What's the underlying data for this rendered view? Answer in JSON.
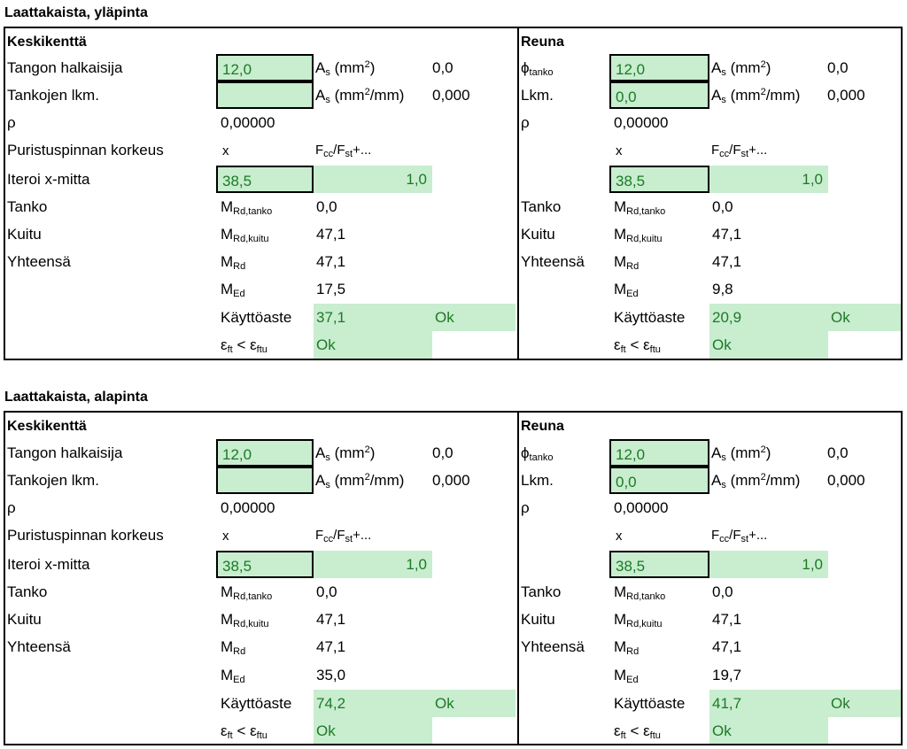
{
  "sections": [
    {
      "title": "Laattakaista, yläpinta",
      "left": {
        "header": "Keskikenttä",
        "label_diameter": "Tangon halkaisija",
        "diameter_value": "12,0",
        "label_count": "Tankojen lkm.",
        "count_value": "",
        "as_value": "0,0",
        "as_per_mm_value": "0,000",
        "rho_label": "ρ",
        "rho_value": "0,00000",
        "label_height": "Puristuspinnan korkeus",
        "x_label": "x",
        "ratio_label": "Fcc/Fst+...",
        "label_iterate": "Iteroi x-mitta",
        "x_value": "38,5",
        "ratio_value": "1,0",
        "label_tanko": "Tanko",
        "mrd_tanko_value": "0,0",
        "label_kuitu": "Kuitu",
        "mrd_kuitu_value": "47,1",
        "label_total": "Yhteensä",
        "mrd_value": "47,1",
        "med_value": "17,5",
        "utilization_label": "Käyttöaste",
        "utilization_value": "37,1",
        "utilization_status": "Ok",
        "strain_status": "Ok"
      },
      "right": {
        "header": "Reuna",
        "phi_label": "ϕ",
        "phi_sub": "tanko",
        "diameter_value": "12,0",
        "label_count": "Lkm.",
        "count_value": "0,0",
        "as_value": "0,0",
        "as_per_mm_value": "0,000",
        "rho_label": "ρ",
        "rho_value": "0,00000",
        "x_label": "x",
        "ratio_label": "Fcc/Fst+...",
        "x_value": "38,5",
        "ratio_value": "1,0",
        "label_tanko": "Tanko",
        "mrd_tanko_value": "0,0",
        "label_kuitu": "Kuitu",
        "mrd_kuitu_value": "47,1",
        "label_total": "Yhteensä",
        "mrd_value": "47,1",
        "med_value": "9,8",
        "utilization_label": "Käyttöaste",
        "utilization_value": "20,9",
        "utilization_status": "Ok",
        "strain_status": "Ok"
      }
    },
    {
      "title": "Laattakaista, alapinta",
      "left": {
        "header": "Keskikenttä",
        "label_diameter": "Tangon halkaisija",
        "diameter_value": "12,0",
        "label_count": "Tankojen lkm.",
        "count_value": "",
        "as_value": "0,0",
        "as_per_mm_value": "0,000",
        "rho_label": "ρ",
        "rho_value": "0,00000",
        "label_height": "Puristuspinnan korkeus",
        "x_label": "x",
        "ratio_label": "Fcc/Fst+...",
        "label_iterate": "Iteroi x-mitta",
        "x_value": "38,5",
        "ratio_value": "1,0",
        "label_tanko": "Tanko",
        "mrd_tanko_value": "0,0",
        "label_kuitu": "Kuitu",
        "mrd_kuitu_value": "47,1",
        "label_total": "Yhteensä",
        "mrd_value": "47,1",
        "med_value": "35,0",
        "utilization_label": "Käyttöaste",
        "utilization_value": "74,2",
        "utilization_status": "Ok",
        "strain_status": "Ok"
      },
      "right": {
        "header": "Reuna",
        "phi_label": "ϕ",
        "phi_sub": "tanko",
        "diameter_value": "12,0",
        "label_count": "Lkm.",
        "count_value": "0,0",
        "as_value": "0,0",
        "as_per_mm_value": "0,000",
        "rho_label": "ρ",
        "rho_value": "0,00000",
        "x_label": "x",
        "ratio_label": "Fcc/Fst+...",
        "x_value": "38,5",
        "ratio_value": "1,0",
        "label_tanko": "Tanko",
        "mrd_tanko_value": "0,0",
        "label_kuitu": "Kuitu",
        "mrd_kuitu_value": "47,1",
        "label_total": "Yhteensä",
        "mrd_value": "47,1",
        "med_value": "19,7",
        "utilization_label": "Käyttöaste",
        "utilization_value": "41,7",
        "utilization_status": "Ok",
        "strain_status": "Ok"
      }
    }
  ],
  "symbols": {
    "as_mm2": "A",
    "as_sub": "s",
    "mm2": " (mm",
    "mm2_sup": "2",
    "mm2_close": ")",
    "mm2_per_mm_close": "/mm)",
    "f": "F",
    "cc": "cc",
    "slash_f": "/F",
    "st": "st",
    "plus": "+...",
    "m": "M",
    "rd_tanko": "Rd,tanko",
    "rd_kuitu": "Rd,kuitu",
    "rd": "Rd",
    "ed": "Ed",
    "eps": "ε",
    "ft": "ft",
    "lt": " < ε",
    "ftu": "ftu"
  }
}
